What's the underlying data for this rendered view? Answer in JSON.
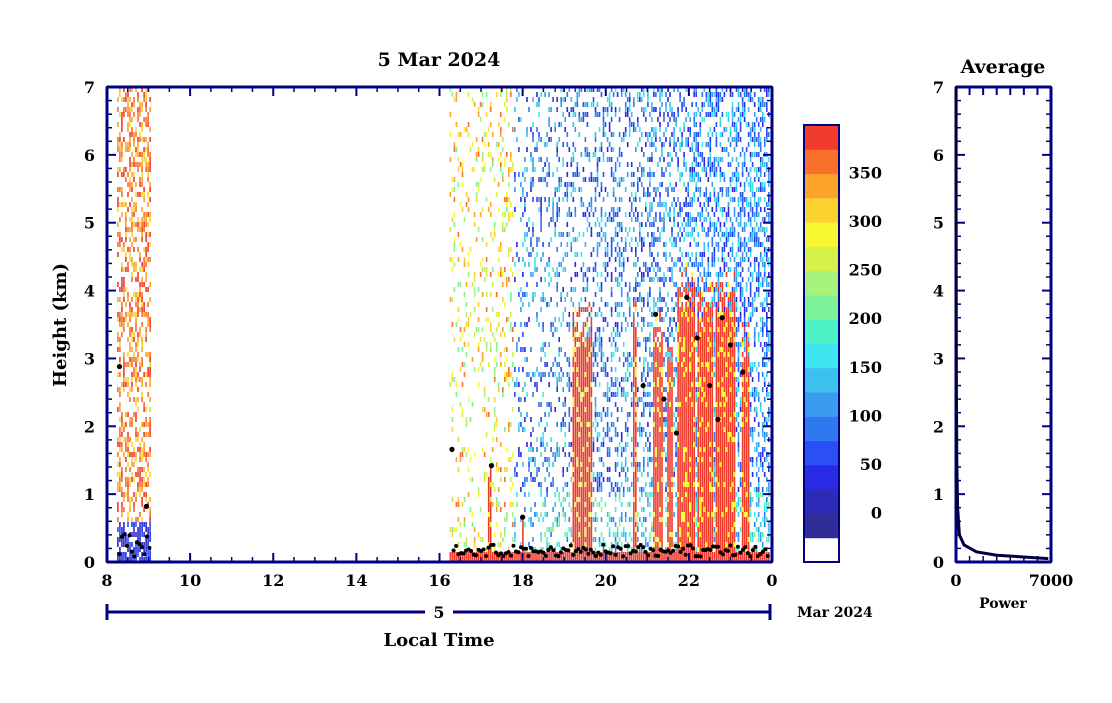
{
  "chart_data": [
    {
      "type": "heatmap",
      "title": "5 Mar 2024",
      "xlabel": "Local Time",
      "ylabel": "Height (km)",
      "date_axis": {
        "day_label": "5",
        "month_label": "Mar 2024"
      },
      "x_ticks": [
        "8",
        "10",
        "12",
        "14",
        "16",
        "18",
        "20",
        "22",
        "0"
      ],
      "x_tick_hours": [
        8,
        10,
        12,
        14,
        16,
        18,
        20,
        22,
        24
      ],
      "xlim_hours": [
        8,
        24
      ],
      "y_ticks": [
        "0",
        "1",
        "2",
        "3",
        "4",
        "5",
        "6",
        "7"
      ],
      "ylim_km": [
        0,
        7
      ],
      "data_gaps_hours": [
        [
          9.05,
          16.25
        ]
      ],
      "colorbar": {
        "tick_labels": [
          "0",
          "50",
          "100",
          "150",
          "200",
          "250",
          "300",
          "350"
        ],
        "levels": [
          -25,
          0,
          25,
          50,
          75,
          100,
          125,
          150,
          175,
          200,
          225,
          250,
          275,
          300,
          325,
          350,
          375
        ],
        "colors": [
          "#ffffff",
          "#2e2e96",
          "#2b2bb8",
          "#2a2ae6",
          "#2a50f5",
          "#2e78f0",
          "#3a9cf0",
          "#3cc0ee",
          "#3ee6f0",
          "#4df2c6",
          "#7cf29a",
          "#a6f27a",
          "#d6f24a",
          "#f8f830",
          "#fcd230",
          "#fca32c",
          "#f8702c",
          "#f03c2c"
        ]
      },
      "cloud_base_markers": "black dots"
    },
    {
      "type": "line",
      "title": "Average",
      "xlabel": "Power",
      "x_ticks": [
        "0",
        "7000"
      ],
      "xlim": [
        0,
        7000
      ],
      "y_ticks": [
        "0",
        "1",
        "2",
        "3",
        "4",
        "5",
        "6",
        "7"
      ],
      "ylim_km": [
        0,
        7
      ],
      "series": [
        {
          "x": [
            6800,
            3000,
            1500,
            600,
            250,
            120,
            60,
            30,
            15,
            10,
            5
          ],
          "y": [
            0.05,
            0.1,
            0.15,
            0.25,
            0.4,
            0.8,
            1.5,
            2.5,
            4,
            5.5,
            7
          ]
        }
      ]
    }
  ]
}
